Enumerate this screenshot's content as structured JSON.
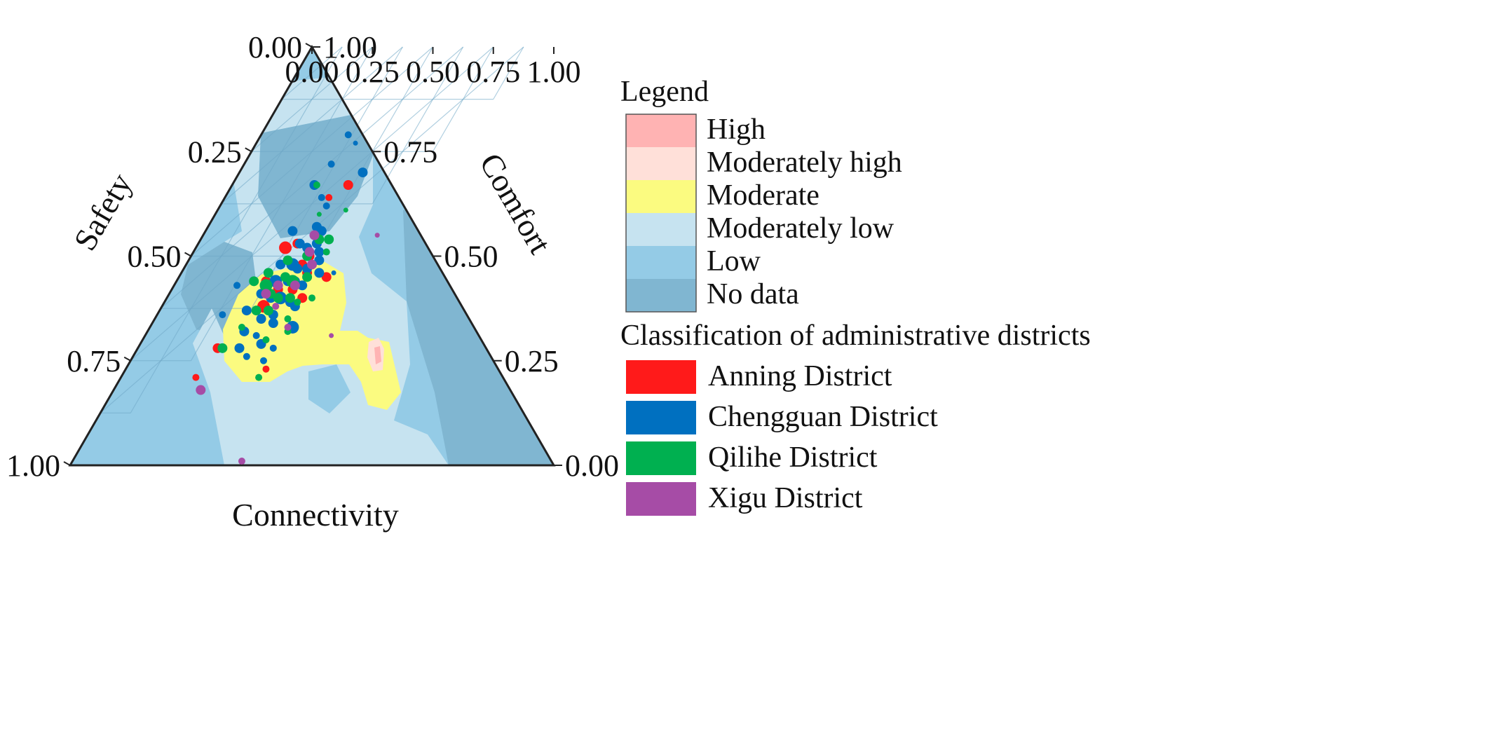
{
  "chart_data": {
    "type": "scatter",
    "subtype": "ternary",
    "axes": {
      "bottom": {
        "label": "Connectivity",
        "ticks": [
          "0.00",
          "0.25",
          "0.50",
          "0.75",
          "1.00"
        ]
      },
      "left": {
        "label": "Safety",
        "ticks": [
          "0.00",
          "0.25",
          "0.50",
          "0.75",
          "1.00"
        ]
      },
      "right": {
        "label": "Comfort",
        "ticks": [
          "1.00",
          "0.75",
          "0.50",
          "0.25",
          "0.00"
        ]
      }
    },
    "grid": true,
    "legend": {
      "title": "Legend",
      "position": "right",
      "levels": [
        {
          "label": "High",
          "color": "#ffb3b3"
        },
        {
          "label": "Moderately high",
          "color": "#ffe0d9"
        },
        {
          "label": "Moderate",
          "color": "#fbfb80"
        },
        {
          "label": "Moderately low",
          "color": "#c6e3f0"
        },
        {
          "label": "Low",
          "color": "#94cbe6"
        },
        {
          "label": "No data",
          "color": "#80b6d1"
        }
      ],
      "districts_title": "Classification of administrative  districts",
      "districts": [
        {
          "label": "Anning  District",
          "color": "#ff1a1a"
        },
        {
          "label": "Chengguan  District",
          "color": "#0070c0"
        },
        {
          "label": "Qilihe  District",
          "color": "#00b050"
        },
        {
          "label": "Xigu  District",
          "color": "#a64ca6"
        }
      ]
    },
    "series": [
      {
        "name": "Anning  District",
        "color": "#ff1a1a",
        "points": [
          {
            "c": 0.48,
            "s": 0.33,
            "r": 3
          },
          {
            "c": 0.43,
            "s": 0.36,
            "r": 2
          },
          {
            "c": 0.37,
            "s": 0.48,
            "r": 4
          },
          {
            "c": 0.41,
            "s": 0.47,
            "r": 3
          },
          {
            "c": 0.37,
            "s": 0.56,
            "r": 3
          },
          {
            "c": 0.48,
            "s": 0.52,
            "r": 3
          },
          {
            "c": 0.42,
            "s": 0.62,
            "r": 4
          },
          {
            "c": 0.5,
            "s": 0.58,
            "r": 3
          },
          {
            "c": 0.52,
            "s": 0.54,
            "r": 3
          },
          {
            "c": 0.33,
            "s": 0.72,
            "r": 3
          },
          {
            "c": 0.31,
            "s": 0.79,
            "r": 2
          },
          {
            "c": 0.56,
            "s": 0.6,
            "r": 3
          },
          {
            "c": 0.61,
            "s": 0.55,
            "r": 3
          },
          {
            "c": 0.58,
            "s": 0.77,
            "r": 2
          },
          {
            "c": 0.49,
            "s": 0.5,
            "r": 3
          },
          {
            "c": 0.44,
            "s": 0.58,
            "r": 3
          }
        ]
      },
      {
        "name": "Chengguan  District",
        "color": "#0070c0",
        "points": [
          {
            "c": 0.36,
            "s": 0.21,
            "r": 2
          },
          {
            "c": 0.41,
            "s": 0.23,
            "r": 1
          },
          {
            "c": 0.36,
            "s": 0.28,
            "r": 2
          },
          {
            "c": 0.34,
            "s": 0.33,
            "r": 3
          },
          {
            "c": 0.51,
            "s": 0.3,
            "r": 3
          },
          {
            "c": 0.4,
            "s": 0.36,
            "r": 2
          },
          {
            "c": 0.44,
            "s": 0.38,
            "r": 2
          },
          {
            "c": 0.36,
            "s": 0.44,
            "r": 3
          },
          {
            "c": 0.45,
            "s": 0.43,
            "r": 3
          },
          {
            "c": 0.48,
            "s": 0.44,
            "r": 3
          },
          {
            "c": 0.42,
            "s": 0.47,
            "r": 3
          },
          {
            "c": 0.46,
            "s": 0.48,
            "r": 3
          },
          {
            "c": 0.49,
            "s": 0.47,
            "r": 3
          },
          {
            "c": 0.52,
            "s": 0.49,
            "r": 3
          },
          {
            "c": 0.39,
            "s": 0.52,
            "r": 3
          },
          {
            "c": 0.44,
            "s": 0.52,
            "r": 4
          },
          {
            "c": 0.47,
            "s": 0.53,
            "r": 3
          },
          {
            "c": 0.51,
            "s": 0.53,
            "r": 3
          },
          {
            "c": 0.41,
            "s": 0.56,
            "r": 4
          },
          {
            "c": 0.46,
            "s": 0.56,
            "r": 3
          },
          {
            "c": 0.49,
            "s": 0.56,
            "r": 3
          },
          {
            "c": 0.53,
            "s": 0.57,
            "r": 3
          },
          {
            "c": 0.38,
            "s": 0.59,
            "r": 3
          },
          {
            "c": 0.43,
            "s": 0.6,
            "r": 3
          },
          {
            "c": 0.47,
            "s": 0.6,
            "r": 4
          },
          {
            "c": 0.52,
            "s": 0.61,
            "r": 3
          },
          {
            "c": 0.36,
            "s": 0.63,
            "r": 3
          },
          {
            "c": 0.44,
            "s": 0.65,
            "r": 3
          },
          {
            "c": 0.48,
            "s": 0.64,
            "r": 3
          },
          {
            "c": 0.4,
            "s": 0.68,
            "r": 3
          },
          {
            "c": 0.46,
            "s": 0.69,
            "r": 2
          },
          {
            "c": 0.5,
            "s": 0.71,
            "r": 3
          },
          {
            "c": 0.47,
            "s": 0.74,
            "r": 2
          },
          {
            "c": 0.26,
            "s": 0.57,
            "r": 2
          },
          {
            "c": 0.27,
            "s": 0.64,
            "r": 2
          },
          {
            "c": 0.55,
            "s": 0.75,
            "r": 2
          },
          {
            "c": 0.59,
            "s": 0.67,
            "r": 4
          },
          {
            "c": 0.56,
            "s": 0.72,
            "r": 2
          },
          {
            "c": 0.63,
            "s": 0.54,
            "r": 1
          },
          {
            "c": 0.54,
            "s": 0.51,
            "r": 3
          },
          {
            "c": 0.57,
            "s": 0.54,
            "r": 3
          },
          {
            "c": 0.5,
            "s": 0.66,
            "r": 3
          },
          {
            "c": 0.42,
            "s": 0.72,
            "r": 3
          },
          {
            "c": 0.55,
            "s": 0.62,
            "r": 3
          }
        ]
      },
      {
        "name": "Qilihe  District",
        "color": "#00b050",
        "points": [
          {
            "c": 0.4,
            "s": 0.18,
            "r": 2
          },
          {
            "c": 0.35,
            "s": 0.33,
            "r": 2
          },
          {
            "c": 0.43,
            "s": 0.4,
            "r": 1
          },
          {
            "c": 0.53,
            "s": 0.39,
            "r": 1
          },
          {
            "c": 0.49,
            "s": 0.46,
            "r": 3
          },
          {
            "c": 0.53,
            "s": 0.46,
            "r": 3
          },
          {
            "c": 0.55,
            "s": 0.49,
            "r": 2
          },
          {
            "c": 0.32,
            "s": 0.56,
            "r": 3
          },
          {
            "c": 0.36,
            "s": 0.54,
            "r": 3
          },
          {
            "c": 0.41,
            "s": 0.51,
            "r": 3
          },
          {
            "c": 0.48,
            "s": 0.5,
            "r": 3
          },
          {
            "c": 0.38,
            "s": 0.57,
            "r": 4
          },
          {
            "c": 0.44,
            "s": 0.55,
            "r": 3
          },
          {
            "c": 0.48,
            "s": 0.56,
            "r": 4
          },
          {
            "c": 0.53,
            "s": 0.55,
            "r": 3
          },
          {
            "c": 0.42,
            "s": 0.59,
            "r": 3
          },
          {
            "c": 0.46,
            "s": 0.6,
            "r": 3
          },
          {
            "c": 0.51,
            "s": 0.6,
            "r": 3
          },
          {
            "c": 0.4,
            "s": 0.63,
            "r": 3
          },
          {
            "c": 0.45,
            "s": 0.63,
            "r": 3
          },
          {
            "c": 0.55,
            "s": 0.61,
            "r": 2
          },
          {
            "c": 0.38,
            "s": 0.67,
            "r": 2
          },
          {
            "c": 0.55,
            "s": 0.65,
            "r": 2
          },
          {
            "c": 0.58,
            "s": 0.68,
            "r": 2
          },
          {
            "c": 0.35,
            "s": 0.72,
            "r": 3
          },
          {
            "c": 0.51,
            "s": 0.7,
            "r": 2
          },
          {
            "c": 0.6,
            "s": 0.6,
            "r": 2
          },
          {
            "c": 0.57,
            "s": 0.79,
            "r": 2
          }
        ]
      },
      {
        "name": "Xigu  District",
        "color": "#a64ca6",
        "points": [
          {
            "c": 0.46,
            "s": 0.45,
            "r": 3
          },
          {
            "c": 0.48,
            "s": 0.49,
            "r": 3
          },
          {
            "c": 0.52,
            "s": 0.52,
            "r": 3
          },
          {
            "c": 0.43,
            "s": 0.57,
            "r": 3
          },
          {
            "c": 0.5,
            "s": 0.57,
            "r": 3
          },
          {
            "c": 0.4,
            "s": 0.59,
            "r": 3
          },
          {
            "c": 0.47,
            "s": 0.62,
            "r": 2
          },
          {
            "c": 0.36,
            "s": 0.82,
            "r": 3
          },
          {
            "c": 0.72,
            "s": 0.45,
            "r": 1
          },
          {
            "c": 0.77,
            "s": 0.69,
            "r": 1
          },
          {
            "c": 0.7,
            "s": 0.99,
            "r": 2
          },
          {
            "c": 0.57,
            "s": 0.67,
            "r": 2
          }
        ]
      }
    ]
  }
}
